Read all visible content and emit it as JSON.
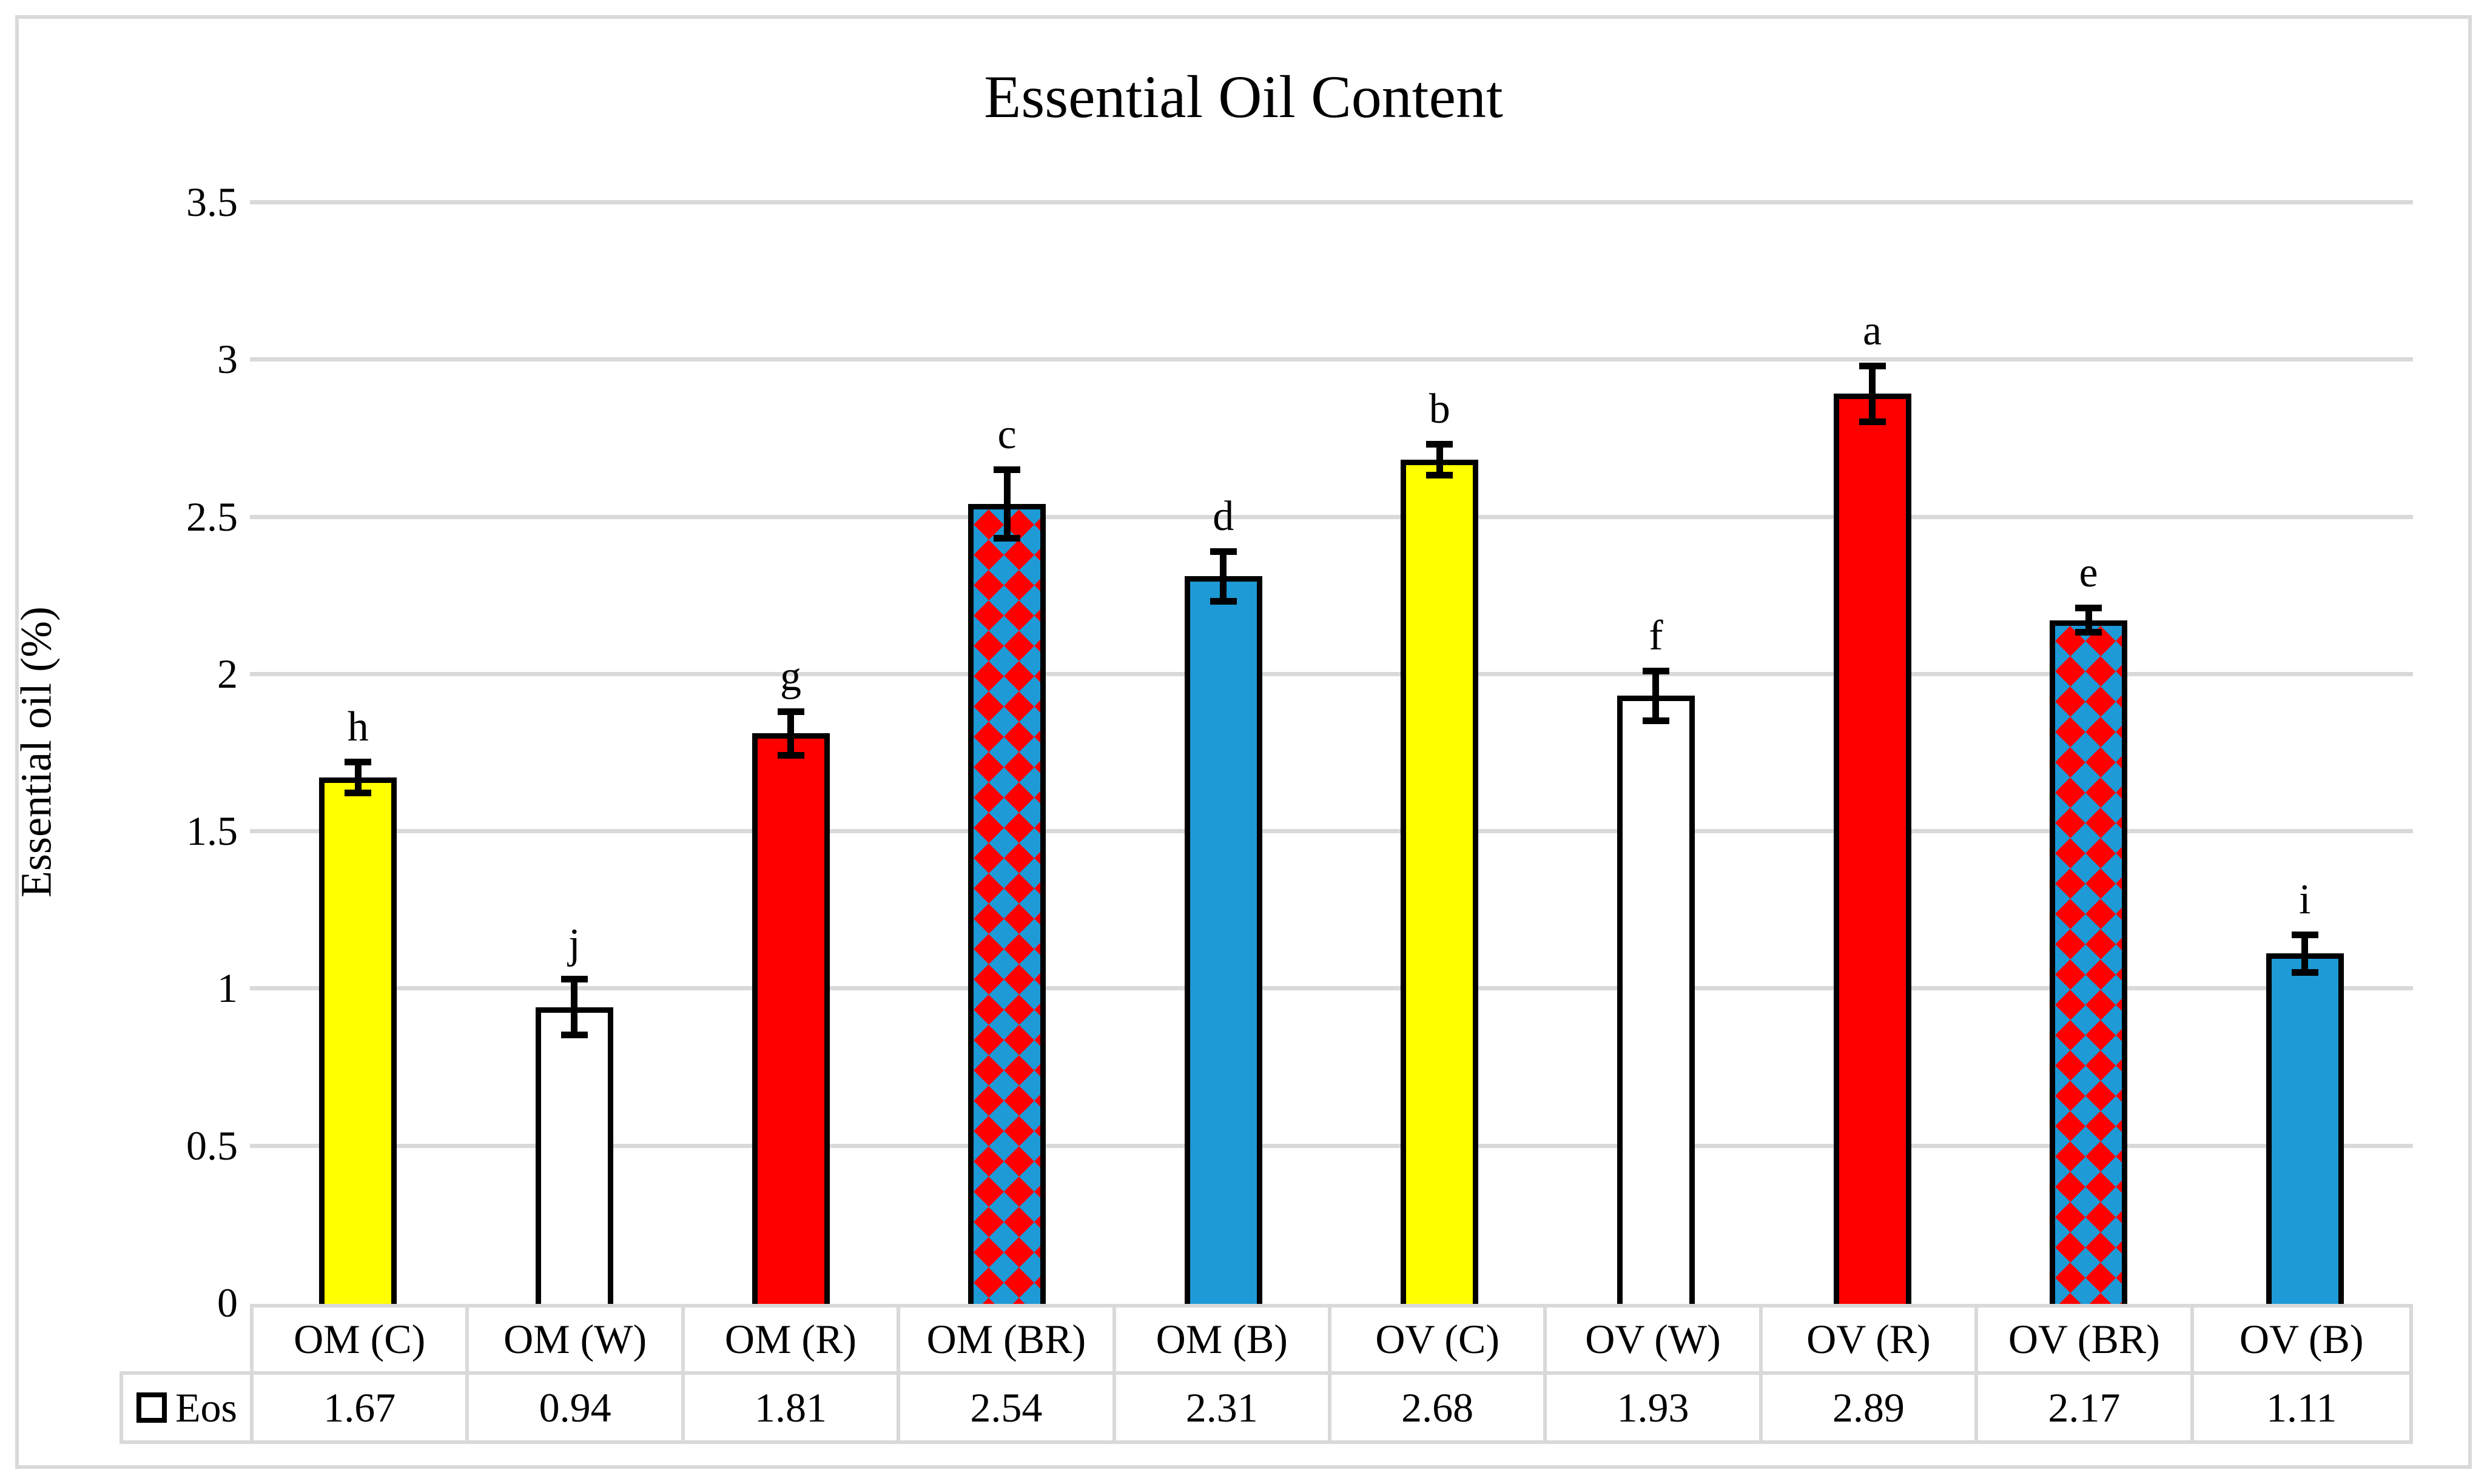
{
  "figure": {
    "title": "Essential Oil Content"
  },
  "y_axis": {
    "label": "Essential oil (%)",
    "ticks": [
      {
        "v": 3.5,
        "label": "3.5"
      },
      {
        "v": 3,
        "label": "3"
      },
      {
        "v": 2.5,
        "label": "2.5"
      },
      {
        "v": 2,
        "label": "2"
      },
      {
        "v": 1.5,
        "label": "1.5"
      },
      {
        "v": 1,
        "label": "1"
      },
      {
        "v": 0.5,
        "label": "0.5"
      },
      {
        "v": 0,
        "label": "0"
      }
    ]
  },
  "legend": {
    "series_label": "Eos"
  },
  "chart_data": {
    "type": "bar",
    "title": "Essential Oil Content",
    "xlabel": "",
    "ylabel": "Essential oil (%)",
    "ylim": [
      0,
      3.5
    ],
    "ytick_step": 0.5,
    "grid": true,
    "legend_position": "bottom-left-data-table",
    "categories": [
      "OM (C)",
      "OM (W)",
      "OM (R)",
      "OM (BR)",
      "OM (B)",
      "OV (C)",
      "OV (W)",
      "OV (R)",
      "OV (BR)",
      "OV (B)"
    ],
    "series": [
      {
        "name": "Eos",
        "values": [
          1.67,
          0.94,
          1.81,
          2.54,
          2.31,
          2.68,
          1.93,
          2.89,
          2.17,
          1.11
        ],
        "errors": [
          0.05,
          0.09,
          0.07,
          0.11,
          0.08,
          0.05,
          0.08,
          0.09,
          0.04,
          0.06
        ],
        "sig_letters": [
          "h",
          "j",
          "g",
          "c",
          "d",
          "b",
          "f",
          "a",
          "e",
          "i"
        ],
        "bar_styles": [
          "yellow",
          "white",
          "red",
          "pattern",
          "blue",
          "yellow",
          "white",
          "red",
          "pattern",
          "blue"
        ]
      }
    ],
    "colors": {
      "yellow": "#FFFF00",
      "red": "#FF0000",
      "blue": "#1E9AD6",
      "white": "#FFFFFF",
      "pattern_foreground": "#FF0000",
      "pattern_background": "#1E9AD6",
      "gridline": "#D9D9D9",
      "bar_border": "#000000"
    }
  },
  "table": {
    "row_header": "Eos",
    "columns": [
      "OM (C)",
      "OM (W)",
      "OM (R)",
      "OM (BR)",
      "OM (B)",
      "OV (C)",
      "OV (W)",
      "OV (R)",
      "OV (BR)",
      "OV (B)"
    ],
    "values": [
      "1.67",
      "0.94",
      "1.81",
      "2.54",
      "2.31",
      "2.68",
      "1.93",
      "2.89",
      "2.17",
      "1.11"
    ]
  }
}
